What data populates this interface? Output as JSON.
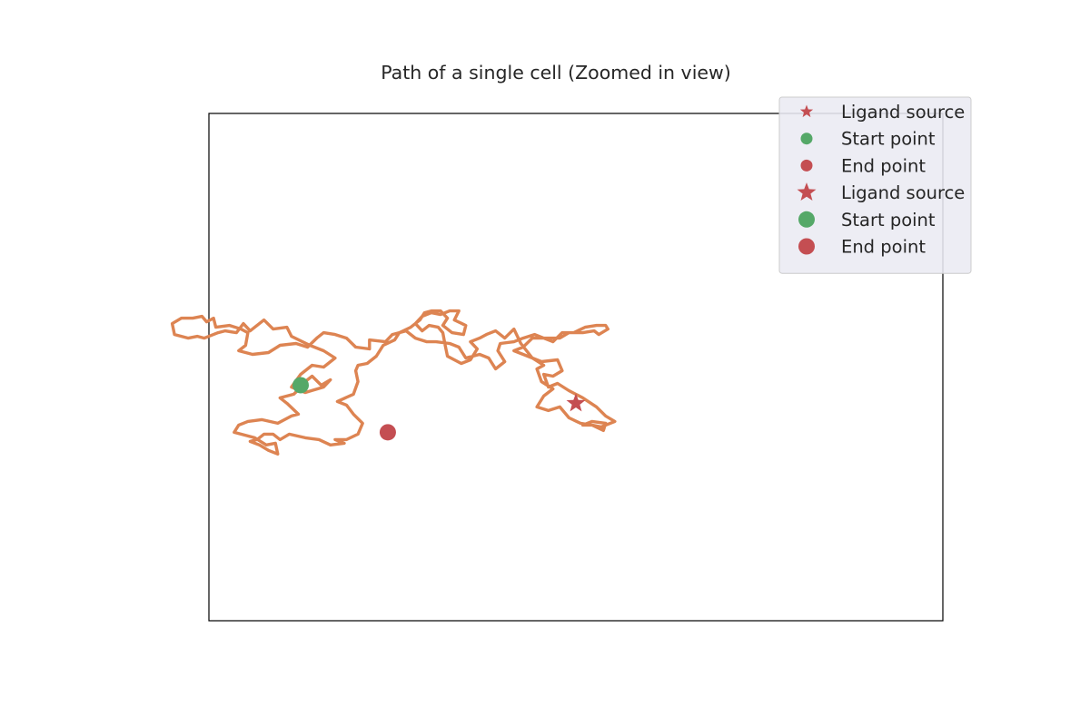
{
  "chart_data": {
    "type": "scatter",
    "title": "Path of a single cell (Zoomed in view)",
    "xlabel": "",
    "ylabel": "",
    "xlim": [
      -6,
      26
    ],
    "ylim": [
      -12,
      16
    ],
    "grid": false,
    "axis_ticks": false,
    "legend": {
      "placement": "top-right",
      "entries": [
        {
          "label": "Ligand source",
          "marker": "star",
          "size": "small",
          "color": "#c44e52"
        },
        {
          "label": "Start point",
          "marker": "circle",
          "size": "small",
          "color": "#55a868"
        },
        {
          "label": "End point",
          "marker": "circle",
          "size": "small",
          "color": "#c44e52"
        },
        {
          "label": "Ligand source",
          "marker": "star",
          "size": "large",
          "color": "#c44e52"
        },
        {
          "label": "Start point",
          "marker": "circle",
          "size": "large",
          "color": "#55a868"
        },
        {
          "label": "End point",
          "marker": "circle",
          "size": "large",
          "color": "#c44e52"
        }
      ]
    },
    "series": [
      {
        "kind": "path",
        "color": "#dd8452",
        "points": [
          [
            -1.9,
            1.1
          ],
          [
            -1.5,
            1.5
          ],
          [
            -1.1,
            1.0
          ],
          [
            -0.7,
            1.3
          ],
          [
            -1.0,
            0.9
          ],
          [
            -1.8,
            0.6
          ],
          [
            -2.4,
            0.9
          ],
          [
            -2.0,
            1.6
          ],
          [
            -1.5,
            2.1
          ],
          [
            -1.0,
            2.0
          ],
          [
            -0.5,
            2.5
          ],
          [
            -1.0,
            2.9
          ],
          [
            -1.6,
            3.2
          ],
          [
            -2.4,
            3.7
          ],
          [
            -2.6,
            4.2
          ],
          [
            -3.2,
            4.1
          ],
          [
            -3.6,
            4.6
          ],
          [
            -4.2,
            4.0
          ],
          [
            -4.5,
            4.4
          ],
          [
            -4.8,
            3.9
          ],
          [
            -5.3,
            4.0
          ],
          [
            -5.6,
            3.9
          ],
          [
            -6.2,
            3.6
          ],
          [
            -6.5,
            3.7
          ],
          [
            -6.9,
            3.6
          ],
          [
            -7.5,
            3.8
          ],
          [
            -7.6,
            4.4
          ],
          [
            -7.2,
            4.7
          ],
          [
            -6.7,
            4.7
          ],
          [
            -6.3,
            4.8
          ],
          [
            -6.1,
            4.5
          ],
          [
            -5.8,
            4.7
          ],
          [
            -5.7,
            4.2
          ],
          [
            -5.1,
            4.3
          ],
          [
            -4.6,
            4.1
          ],
          [
            -4.3,
            3.9
          ],
          [
            -4.4,
            3.2
          ],
          [
            -4.7,
            2.9
          ],
          [
            -4.1,
            2.7
          ],
          [
            -3.4,
            2.8
          ],
          [
            -2.9,
            3.2
          ],
          [
            -2.2,
            3.3
          ],
          [
            -1.7,
            3.1
          ],
          [
            -1.3,
            3.6
          ],
          [
            -1.0,
            3.9
          ],
          [
            -0.5,
            3.8
          ],
          [
            0.0,
            3.6
          ],
          [
            0.4,
            3.1
          ],
          [
            1.0,
            3.0
          ],
          [
            1.0,
            3.5
          ],
          [
            1.7,
            3.4
          ],
          [
            2.0,
            3.8
          ],
          [
            2.6,
            4.0
          ],
          [
            3.0,
            3.6
          ],
          [
            3.5,
            3.4
          ],
          [
            3.9,
            3.4
          ],
          [
            4.5,
            3.3
          ],
          [
            4.9,
            3.1
          ],
          [
            5.2,
            2.5
          ],
          [
            5.8,
            2.7
          ],
          [
            6.2,
            2.5
          ],
          [
            6.5,
            1.9
          ],
          [
            6.9,
            2.3
          ],
          [
            6.6,
            2.9
          ],
          [
            6.7,
            3.3
          ],
          [
            7.3,
            3.4
          ],
          [
            7.7,
            3.6
          ],
          [
            8.2,
            3.8
          ],
          [
            8.6,
            3.6
          ],
          [
            9.0,
            3.4
          ],
          [
            9.4,
            3.9
          ],
          [
            9.9,
            3.9
          ],
          [
            10.4,
            4.2
          ],
          [
            10.9,
            4.3
          ],
          [
            11.3,
            4.3
          ],
          [
            11.4,
            4.1
          ],
          [
            11.0,
            3.8
          ],
          [
            10.8,
            4.0
          ],
          [
            10.3,
            3.9
          ],
          [
            9.7,
            3.9
          ],
          [
            9.3,
            3.6
          ],
          [
            8.7,
            3.6
          ],
          [
            8.1,
            3.6
          ],
          [
            7.7,
            3.1
          ],
          [
            7.3,
            2.9
          ],
          [
            7.9,
            2.6
          ],
          [
            8.5,
            2.3
          ],
          [
            9.2,
            2.4
          ],
          [
            9.4,
            1.8
          ],
          [
            9.0,
            1.5
          ],
          [
            8.6,
            1.6
          ],
          [
            8.8,
            0.9
          ],
          [
            9.2,
            1.1
          ],
          [
            9.7,
            0.7
          ],
          [
            10.3,
            0.3
          ],
          [
            10.9,
            -0.2
          ],
          [
            11.3,
            -0.7
          ],
          [
            11.7,
            -1.0
          ],
          [
            11.1,
            -1.3
          ],
          [
            10.7,
            -1.2
          ],
          [
            10.3,
            -1.2
          ],
          [
            10.7,
            -1.0
          ],
          [
            11.3,
            -1.1
          ],
          [
            11.2,
            -1.5
          ],
          [
            10.7,
            -1.2
          ],
          [
            10.2,
            -1.1
          ],
          [
            9.7,
            -0.8
          ],
          [
            9.3,
            -0.2
          ],
          [
            8.8,
            -0.4
          ],
          [
            8.3,
            -0.2
          ],
          [
            8.6,
            0.4
          ],
          [
            9.0,
            0.8
          ],
          [
            8.5,
            1.2
          ],
          [
            8.3,
            1.9
          ],
          [
            8.6,
            2.1
          ],
          [
            8.1,
            2.5
          ],
          [
            7.6,
            3.3
          ],
          [
            7.3,
            4.1
          ],
          [
            6.9,
            3.6
          ],
          [
            6.5,
            4.0
          ],
          [
            6.1,
            3.8
          ],
          [
            5.8,
            3.6
          ],
          [
            5.4,
            3.4
          ],
          [
            5.7,
            3.0
          ],
          [
            5.4,
            2.4
          ],
          [
            5.0,
            2.2
          ],
          [
            4.4,
            2.6
          ],
          [
            4.3,
            3.2
          ],
          [
            4.2,
            3.9
          ],
          [
            4.0,
            4.2
          ],
          [
            3.6,
            4.3
          ],
          [
            3.3,
            4.0
          ],
          [
            3.0,
            4.4
          ],
          [
            3.3,
            4.8
          ],
          [
            3.7,
            5.0
          ],
          [
            4.1,
            4.9
          ],
          [
            4.5,
            5.1
          ],
          [
            4.9,
            5.1
          ],
          [
            4.7,
            4.6
          ],
          [
            5.2,
            4.3
          ],
          [
            5.1,
            3.8
          ],
          [
            4.6,
            3.9
          ],
          [
            4.2,
            4.3
          ],
          [
            4.4,
            4.7
          ],
          [
            4.1,
            5.1
          ],
          [
            3.7,
            5.1
          ],
          [
            3.4,
            5.0
          ],
          [
            3.2,
            4.6
          ],
          [
            2.8,
            4.2
          ],
          [
            2.3,
            3.9
          ],
          [
            2.1,
            3.5
          ],
          [
            1.6,
            3.2
          ],
          [
            1.3,
            2.6
          ],
          [
            0.9,
            2.2
          ],
          [
            0.5,
            2.1
          ],
          [
            0.4,
            1.8
          ],
          [
            0.5,
            1.2
          ],
          [
            0.3,
            0.5
          ],
          [
            -0.4,
            0.1
          ],
          [
            0.0,
            -0.1
          ],
          [
            0.3,
            -0.6
          ],
          [
            0.7,
            -1.1
          ],
          [
            0.5,
            -1.7
          ],
          [
            0.0,
            -2.0
          ],
          [
            -0.5,
            -2.0
          ],
          [
            -0.1,
            -2.2
          ],
          [
            -0.7,
            -2.3
          ],
          [
            -1.2,
            -2.0
          ],
          [
            -1.8,
            -1.9
          ],
          [
            -2.5,
            -1.7
          ],
          [
            -2.9,
            -2.0
          ],
          [
            -3.2,
            -1.7
          ],
          [
            -3.6,
            -1.7
          ],
          [
            -3.9,
            -2.0
          ],
          [
            -4.2,
            -2.1
          ],
          [
            -3.8,
            -2.3
          ],
          [
            -3.4,
            -2.6
          ],
          [
            -3.0,
            -2.8
          ],
          [
            -3.1,
            -2.2
          ],
          [
            -3.5,
            -2.3
          ],
          [
            -4.0,
            -1.9
          ],
          [
            -4.6,
            -1.7
          ],
          [
            -4.9,
            -1.6
          ],
          [
            -4.7,
            -1.2
          ],
          [
            -4.3,
            -1.0
          ],
          [
            -3.7,
            -0.9
          ],
          [
            -3.0,
            -1.1
          ],
          [
            -2.4,
            -0.7
          ],
          [
            -2.1,
            -0.6
          ],
          [
            -2.6,
            0.0
          ],
          [
            -2.9,
            0.3
          ],
          [
            -2.3,
            0.5
          ],
          [
            -1.9,
            1.0
          ]
        ]
      },
      {
        "kind": "marker",
        "name": "Ligand source",
        "marker": "star",
        "color": "#c44e52",
        "points": [
          [
            10,
            0
          ]
        ]
      },
      {
        "kind": "marker",
        "name": "Start point",
        "marker": "circle",
        "color": "#55a868",
        "points": [
          [
            -2,
            1
          ]
        ]
      },
      {
        "kind": "marker",
        "name": "End point",
        "marker": "circle",
        "color": "#c44e52",
        "points": [
          [
            1.8,
            -1.6
          ]
        ]
      }
    ]
  }
}
